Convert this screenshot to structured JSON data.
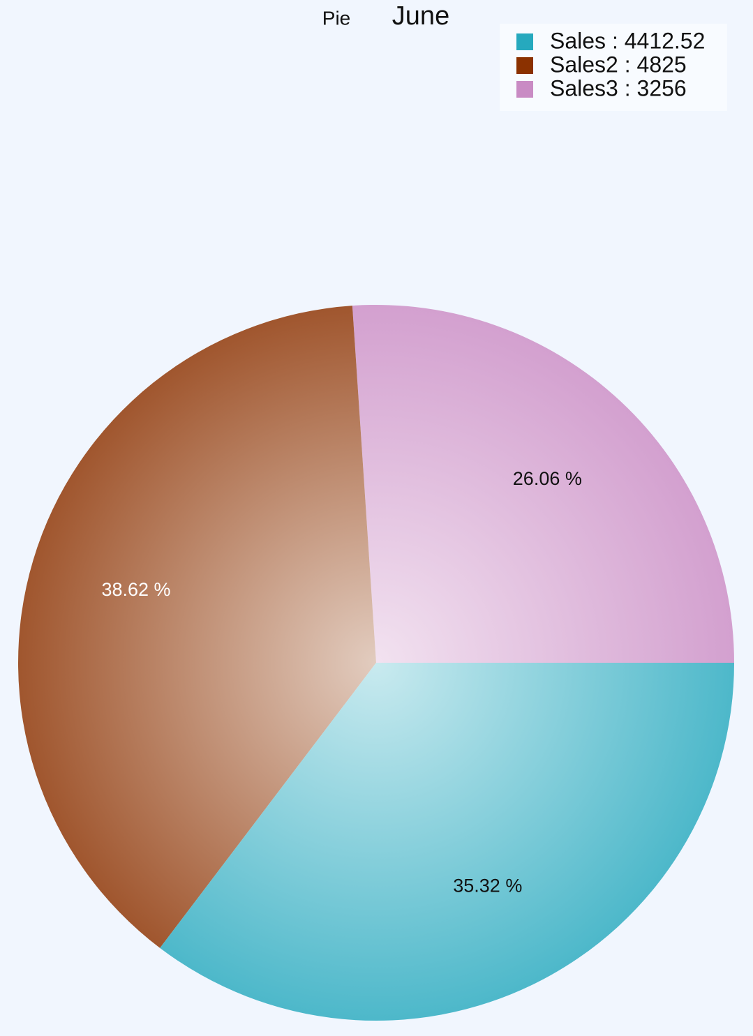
{
  "chart_data": {
    "type": "pie",
    "subtitle": "Pie",
    "title": "June",
    "categories": [
      "Sales",
      "Sales2",
      "Sales3"
    ],
    "legend_labels": [
      "Sales : 4412.52",
      "Sales2 : 4825",
      "Sales3 : 3256"
    ],
    "values": [
      35.32,
      38.62,
      26.06
    ],
    "value_labels": [
      "35.32 %",
      "38.62 %",
      "26.06 %"
    ],
    "colors": [
      "#26a9be",
      "#8b3100",
      "#c98bc4"
    ],
    "legend_position": "top-right"
  }
}
